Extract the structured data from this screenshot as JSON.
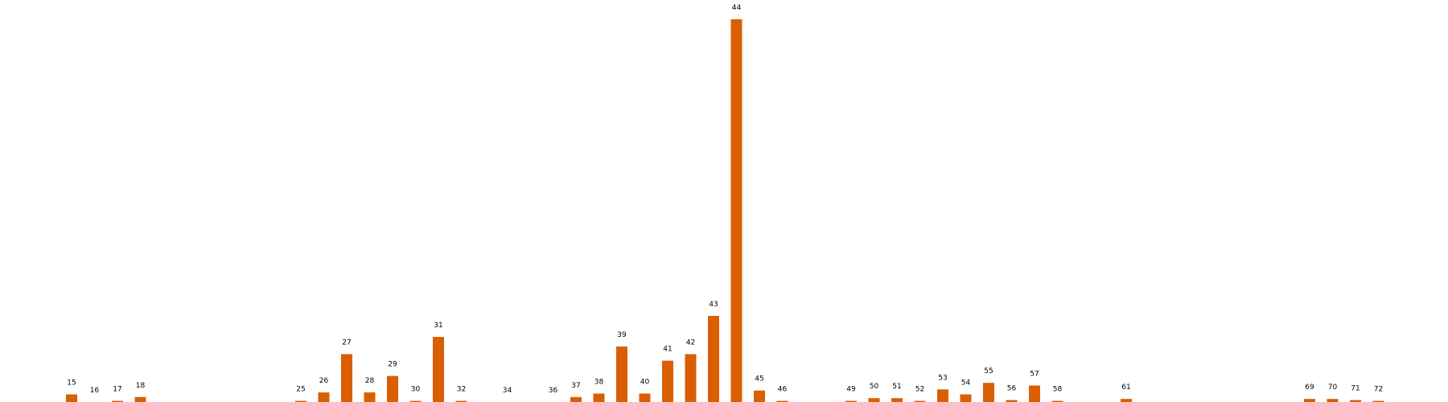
{
  "chart_data": {
    "type": "bar",
    "title": "",
    "xlabel": "",
    "ylabel": "",
    "grid": false,
    "color": "#d95f02",
    "x_range": [
      15,
      72
    ],
    "ylim": [
      0,
      100
    ],
    "bars": [
      {
        "x": 15,
        "label": "15",
        "value": 2.0
      },
      {
        "x": 16,
        "label": "16",
        "value": 0.0
      },
      {
        "x": 17,
        "label": "17",
        "value": 0.3
      },
      {
        "x": 18,
        "label": "18",
        "value": 1.3
      },
      {
        "x": 25,
        "label": "25",
        "value": 0.3
      },
      {
        "x": 26,
        "label": "26",
        "value": 2.5
      },
      {
        "x": 27,
        "label": "27",
        "value": 12.5
      },
      {
        "x": 28,
        "label": "28",
        "value": 2.5
      },
      {
        "x": 29,
        "label": "29",
        "value": 6.8
      },
      {
        "x": 30,
        "label": "30",
        "value": 0.3
      },
      {
        "x": 31,
        "label": "31",
        "value": 17.0
      },
      {
        "x": 32,
        "label": "32",
        "value": 0.3
      },
      {
        "x": 34,
        "label": "34",
        "value": 0.0
      },
      {
        "x": 36,
        "label": "36",
        "value": 0.0
      },
      {
        "x": 37,
        "label": "37",
        "value": 1.3
      },
      {
        "x": 38,
        "label": "38",
        "value": 2.2
      },
      {
        "x": 39,
        "label": "39",
        "value": 14.5
      },
      {
        "x": 40,
        "label": "40",
        "value": 2.2
      },
      {
        "x": 41,
        "label": "41",
        "value": 10.8
      },
      {
        "x": 42,
        "label": "42",
        "value": 12.5
      },
      {
        "x": 43,
        "label": "43",
        "value": 22.5
      },
      {
        "x": 44,
        "label": "44",
        "value": 100.0
      },
      {
        "x": 45,
        "label": "45",
        "value": 3.0
      },
      {
        "x": 46,
        "label": "46",
        "value": 0.3
      },
      {
        "x": 49,
        "label": "49",
        "value": 0.3
      },
      {
        "x": 50,
        "label": "50",
        "value": 1.0
      },
      {
        "x": 51,
        "label": "51",
        "value": 1.0
      },
      {
        "x": 52,
        "label": "52",
        "value": 0.3
      },
      {
        "x": 53,
        "label": "53",
        "value": 3.3
      },
      {
        "x": 54,
        "label": "54",
        "value": 2.0
      },
      {
        "x": 55,
        "label": "55",
        "value": 5.0
      },
      {
        "x": 56,
        "label": "56",
        "value": 0.5
      },
      {
        "x": 57,
        "label": "57",
        "value": 4.3
      },
      {
        "x": 58,
        "label": "58",
        "value": 0.3
      },
      {
        "x": 61,
        "label": "61",
        "value": 0.8
      },
      {
        "x": 69,
        "label": "69",
        "value": 0.8
      },
      {
        "x": 70,
        "label": "70",
        "value": 0.8
      },
      {
        "x": 71,
        "label": "71",
        "value": 0.5
      },
      {
        "x": 72,
        "label": "72",
        "value": 0.3
      }
    ]
  }
}
